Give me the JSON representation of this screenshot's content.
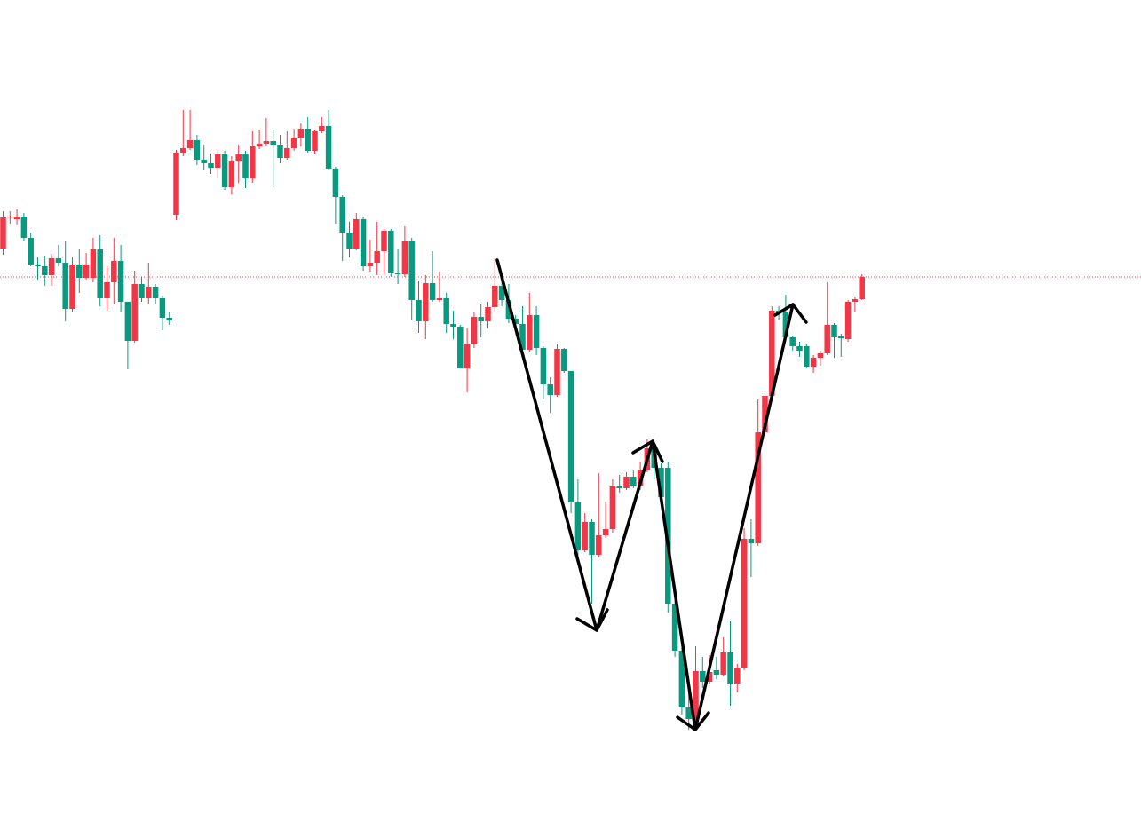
{
  "chart_data": {
    "type": "candlestick",
    "up_color": "#f23645",
    "down_color": "#089981",
    "ylim": [
      65,
      1000
    ],
    "open": [
      720,
      755,
      753,
      756,
      732,
      702,
      700,
      690,
      709,
      704,
      652,
      702,
      687,
      687,
      719,
      664,
      682,
      706,
      660,
      616,
      680,
      664,
      677,
      664,
      642,
      758,
      828,
      833,
      842,
      820,
      816,
      811,
      826,
      789,
      819,
      826,
      799,
      835,
      838,
      841,
      837,
      822,
      833,
      845,
      855,
      830,
      852,
      858,
      810,
      778,
      738,
      720,
      753,
      700,
      704,
      717,
      740,
      693,
      691,
      728,
      662,
      638,
      681,
      662,
      664,
      635,
      632,
      585,
      612,
      643,
      638,
      654,
      678,
      662,
      641,
      635,
      606,
      645,
      608,
      567,
      555,
      607,
      582,
      435,
      380,
      412,
      375,
      397,
      404,
      452,
      450,
      463,
      452,
      470,
      495,
      473,
      473,
      320,
      267,
      203,
      190,
      244,
      232,
      245,
      240,
      265,
      230,
      248,
      393,
      388,
      513,
      554,
      650,
      648,
      620,
      610,
      610,
      587,
      597,
      602,
      634,
      621,
      618,
      660,
      663
    ],
    "high": [
      762,
      762,
      764,
      760,
      738,
      710,
      712,
      714,
      724,
      728,
      710,
      720,
      715,
      732,
      735,
      700,
      732,
      724,
      660,
      695,
      688,
      704,
      680,
      667,
      648,
      831,
      876,
      876,
      848,
      837,
      827,
      832,
      830,
      824,
      837,
      830,
      852,
      854,
      867,
      854,
      848,
      852,
      855,
      861,
      868,
      854,
      868,
      876,
      812,
      780,
      750,
      760,
      756,
      730,
      750,
      742,
      742,
      720,
      745,
      732,
      684,
      690,
      717,
      694,
      670,
      650,
      634,
      630,
      648,
      657,
      660,
      708,
      685,
      680,
      645,
      655,
      670,
      655,
      610,
      575,
      612,
      608,
      582,
      460,
      422,
      415,
      467,
      435,
      460,
      465,
      468,
      470,
      480,
      505,
      500,
      478,
      480,
      330,
      270,
      230,
      272,
      260,
      262,
      260,
      282,
      300,
      252,
      405,
      415,
      550,
      560,
      655,
      655,
      668,
      622,
      615,
      612,
      600,
      605,
      682,
      636,
      624,
      662,
      665,
      691
    ],
    "low": [
      713,
      748,
      747,
      728,
      700,
      685,
      678,
      678,
      700,
      638,
      648,
      670,
      685,
      682,
      655,
      650,
      658,
      648,
      584,
      614,
      660,
      658,
      658,
      628,
      634,
      752,
      824,
      831,
      814,
      808,
      804,
      800,
      786,
      781,
      794,
      788,
      794,
      832,
      835,
      789,
      816,
      820,
      830,
      835,
      828,
      826,
      850,
      808,
      748,
      706,
      710,
      718,
      695,
      694,
      690,
      690,
      688,
      680,
      688,
      640,
      625,
      618,
      660,
      660,
      625,
      618,
      585,
      558,
      608,
      620,
      630,
      648,
      655,
      636,
      630,
      602,
      604,
      600,
      550,
      535,
      553,
      580,
      422,
      372,
      378,
      320,
      372,
      394,
      400,
      445,
      448,
      450,
      448,
      468,
      460,
      433,
      310,
      260,
      195,
      178,
      185,
      225,
      230,
      235,
      238,
      205,
      220,
      245,
      350,
      385,
      510,
      548,
      640,
      615,
      605,
      598,
      585,
      580,
      588,
      600,
      597,
      598,
      615,
      648,
      662
    ],
    "close": [
      755,
      756,
      756,
      732,
      702,
      700,
      690,
      709,
      704,
      652,
      702,
      687,
      702,
      719,
      664,
      682,
      706,
      660,
      616,
      680,
      664,
      677,
      664,
      642,
      639,
      828,
      833,
      842,
      820,
      816,
      811,
      826,
      789,
      819,
      826,
      799,
      835,
      838,
      841,
      837,
      822,
      833,
      845,
      855,
      830,
      852,
      858,
      810,
      778,
      738,
      720,
      753,
      700,
      704,
      717,
      740,
      693,
      691,
      728,
      662,
      638,
      681,
      662,
      664,
      635,
      632,
      585,
      612,
      643,
      638,
      654,
      678,
      662,
      641,
      635,
      606,
      645,
      608,
      567,
      555,
      607,
      582,
      435,
      380,
      412,
      375,
      397,
      404,
      452,
      450,
      463,
      452,
      470,
      495,
      473,
      440,
      320,
      267,
      203,
      190,
      244,
      232,
      243,
      240,
      265,
      230,
      248,
      393,
      388,
      513,
      554,
      650,
      648,
      620,
      610,
      605,
      587,
      597,
      602,
      634,
      620,
      619,
      660,
      663,
      688
    ]
  }
}
